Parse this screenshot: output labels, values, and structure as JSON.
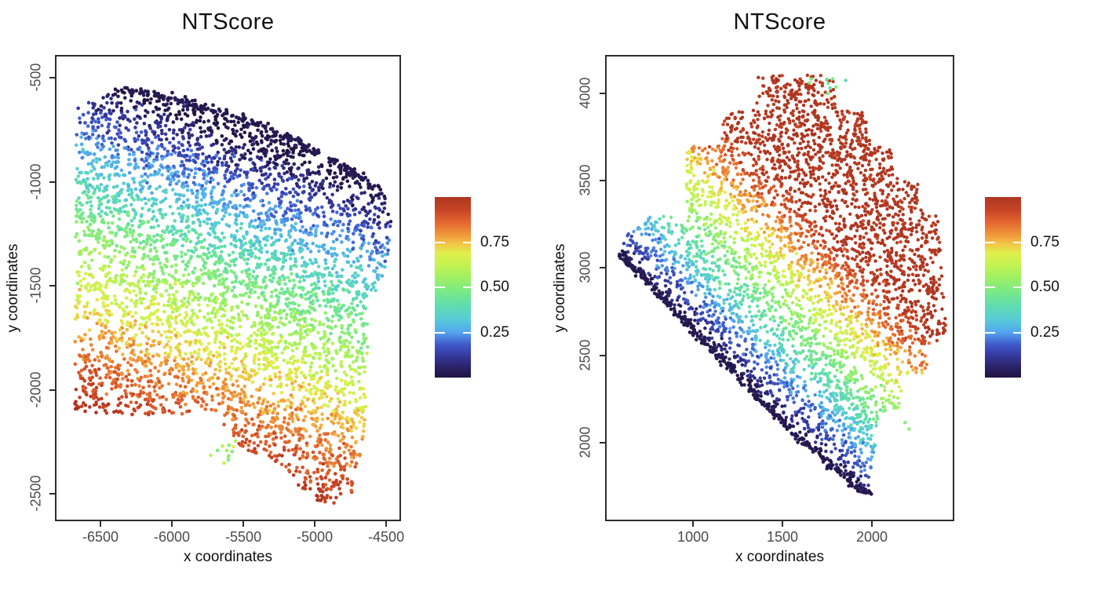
{
  "figure": {
    "background": "#ffffff"
  },
  "colormap": {
    "name": "dark-blue-to-brick-turbo-like",
    "stops": [
      [
        0.0,
        "#221341"
      ],
      [
        0.06,
        "#2b2369"
      ],
      [
        0.12,
        "#35389c"
      ],
      [
        0.18,
        "#3f57c9"
      ],
      [
        0.25,
        "#54a4f0"
      ],
      [
        0.32,
        "#57cbd8"
      ],
      [
        0.4,
        "#5fddae"
      ],
      [
        0.48,
        "#7cea85"
      ],
      [
        0.55,
        "#9df066"
      ],
      [
        0.62,
        "#c2f352"
      ],
      [
        0.69,
        "#e0ef4b"
      ],
      [
        0.74,
        "#f2c548"
      ],
      [
        0.78,
        "#f0a03c"
      ],
      [
        0.86,
        "#e3662f"
      ],
      [
        0.93,
        "#c64425"
      ],
      [
        1.0,
        "#ad3621"
      ]
    ]
  },
  "chart_data": [
    {
      "type": "scatter",
      "title": "NTScore",
      "xlabel": "x coordinates",
      "ylabel": "y coordinates",
      "x_ticks": [
        -6500,
        -6000,
        -5500,
        -5000,
        -4500
      ],
      "y_ticks": [
        -500,
        -1000,
        -1500,
        -2000,
        -2500
      ],
      "x_range": [
        -6808,
        -4407
      ],
      "y_range": [
        -2624,
        -398
      ],
      "grid": false,
      "legend_position": "right",
      "colorbar": {
        "tick_labels": [
          "0.75",
          "0.50",
          "0.25"
        ],
        "tick_values": [
          0.75,
          0.5,
          0.25
        ],
        "value_range": [
          0,
          1
        ]
      },
      "points_model": {
        "n": 4600,
        "seed": 42,
        "dot_radius": 2.3,
        "polygon": [
          [
            -6670,
            -640
          ],
          [
            -6500,
            -600
          ],
          [
            -6380,
            -555
          ],
          [
            -6150,
            -575
          ],
          [
            -5900,
            -615
          ],
          [
            -5650,
            -660
          ],
          [
            -5400,
            -730
          ],
          [
            -5150,
            -810
          ],
          [
            -4900,
            -900
          ],
          [
            -4700,
            -990
          ],
          [
            -4510,
            -1070
          ],
          [
            -4460,
            -1200
          ],
          [
            -4500,
            -1400
          ],
          [
            -4560,
            -1520
          ],
          [
            -4650,
            -1560
          ],
          [
            -4620,
            -1750
          ],
          [
            -4650,
            -1950
          ],
          [
            -4640,
            -2120
          ],
          [
            -4680,
            -2300
          ],
          [
            -4730,
            -2500
          ],
          [
            -4860,
            -2545
          ],
          [
            -5060,
            -2530
          ],
          [
            -5150,
            -2430
          ],
          [
            -5230,
            -2360
          ],
          [
            -5420,
            -2310
          ],
          [
            -5540,
            -2270
          ],
          [
            -5620,
            -2200
          ],
          [
            -5660,
            -2120
          ],
          [
            -6680,
            -2120
          ]
        ],
        "field": {
          "dir": [
            0.26,
            0.97
          ],
          "u0": -2198,
          "range": 1592,
          "sign": -1,
          "gamma": 0.85,
          "noise": 0.035
        },
        "edge_chain": {
          "kind": "bezier",
          "p0": [
            -6380,
            -555
          ],
          "c": [
            -5330,
            -655
          ],
          "p1": [
            -4510,
            -1060
          ],
          "n": 210,
          "jitter": [
            12,
            10
          ],
          "score": 0.02
        },
        "outlier_clusters": [
          {
            "center": [
              -5600,
              -2300
            ],
            "spread": [
              45,
              32
            ],
            "n": 12,
            "score": 0.56,
            "score_spread": 0.05
          }
        ],
        "outlier_points": []
      }
    },
    {
      "type": "scatter",
      "title": "NTScore",
      "xlabel": "x coordinates",
      "ylabel": "y coordinates",
      "x_ticks": [
        1000,
        1500,
        2000
      ],
      "y_ticks": [
        4000,
        3500,
        3000,
        2500,
        2000
      ],
      "x_range": [
        517,
        2452
      ],
      "y_range": [
        1559,
        4211
      ],
      "grid": false,
      "legend_position": "right",
      "colorbar": {
        "tick_labels": [
          "0.75",
          "0.50",
          "0.25"
        ],
        "tick_values": [
          0.75,
          0.5,
          0.25
        ],
        "value_range": [
          0,
          1
        ]
      },
      "points_model": {
        "n": 4100,
        "seed": 1337,
        "dot_radius": 2.2,
        "polygon": [
          [
            583,
            3085
          ],
          [
            640,
            3200
          ],
          [
            770,
            3300
          ],
          [
            958,
            3305
          ],
          [
            965,
            3700
          ],
          [
            1160,
            3705
          ],
          [
            1168,
            3905
          ],
          [
            1352,
            3910
          ],
          [
            1360,
            4105
          ],
          [
            1785,
            4105
          ],
          [
            1800,
            3905
          ],
          [
            1968,
            3895
          ],
          [
            1990,
            3700
          ],
          [
            2105,
            3695
          ],
          [
            2125,
            3515
          ],
          [
            2255,
            3505
          ],
          [
            2275,
            3330
          ],
          [
            2365,
            3305
          ],
          [
            2400,
            3000
          ],
          [
            2415,
            2600
          ],
          [
            2330,
            2555
          ],
          [
            2300,
            2395
          ],
          [
            2180,
            2375
          ],
          [
            2150,
            2195
          ],
          [
            2040,
            2175
          ],
          [
            2020,
            1995
          ],
          [
            1990,
            1700
          ],
          [
            1925,
            1730
          ],
          [
            1850,
            1805
          ],
          [
            1760,
            1870
          ],
          [
            1695,
            1955
          ],
          [
            1615,
            2005
          ],
          [
            1570,
            2040
          ]
        ],
        "field": {
          "dir": [
            0.712,
            0.702
          ],
          "u0": 2565,
          "range": 980,
          "sign": 1,
          "gamma": 0.85,
          "noise": 0.035
        },
        "edge_chain": {
          "kind": "polyline",
          "pts": [
            [
              583,
              3085
            ],
            [
              1570,
              2040
            ],
            [
              1620,
              2000
            ],
            [
              1700,
              1950
            ],
            [
              1760,
              1868
            ],
            [
              1850,
              1806
            ],
            [
              1925,
              1730
            ],
            [
              1990,
              1700
            ]
          ],
          "n": 340,
          "jitter": [
            10,
            10
          ],
          "score": 0.02
        },
        "outlier_clusters": [
          {
            "center": [
              1765,
              4055
            ],
            "spread": [
              45,
              32
            ],
            "n": 9,
            "score": 0.5,
            "score_spread": 0.05
          }
        ],
        "outlier_points": [
          [
            2185,
            2115,
            0.5
          ],
          [
            2208,
            2078,
            0.52
          ]
        ]
      }
    }
  ]
}
